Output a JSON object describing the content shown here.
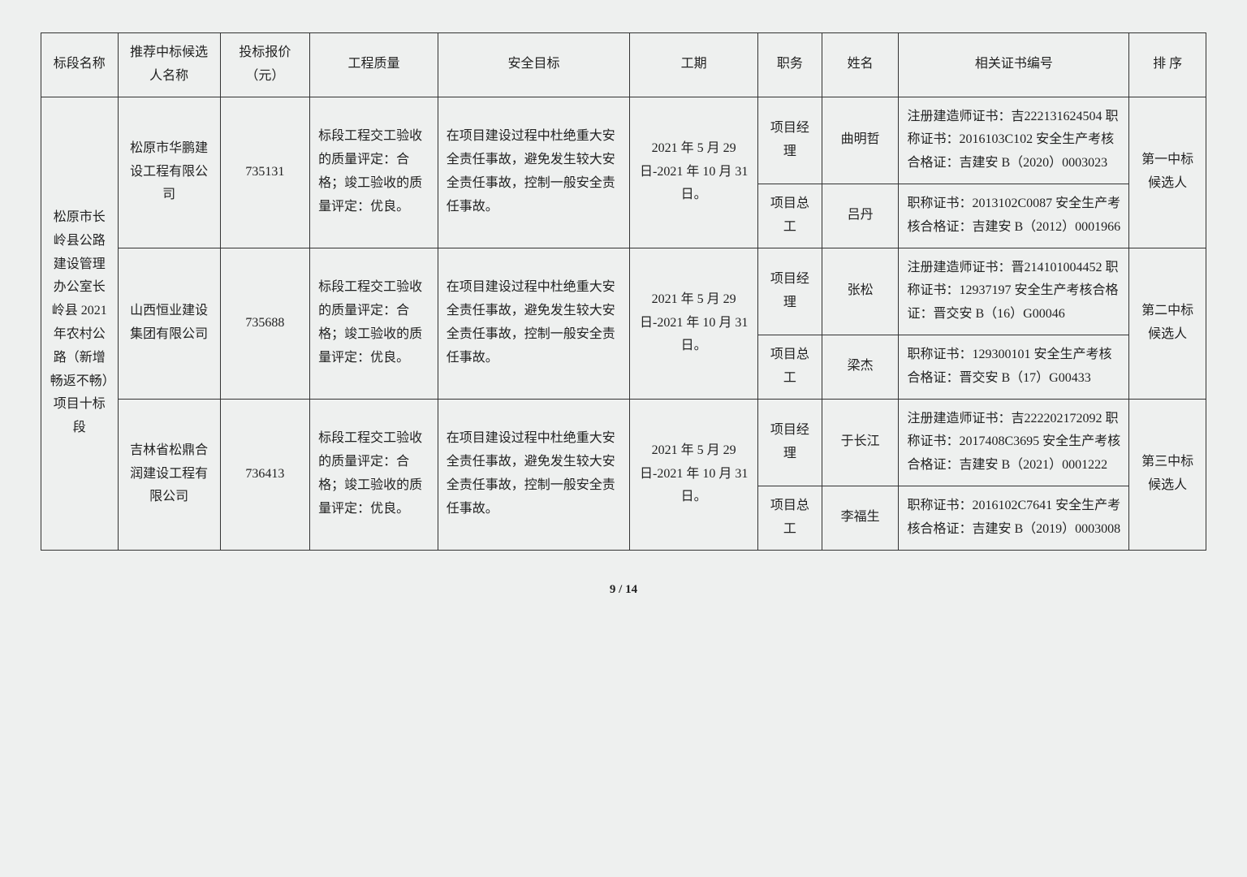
{
  "headers": [
    "标段名称",
    "推荐中标候选人名称",
    "投标报价（元）",
    "工程质量",
    "安全目标",
    "工期",
    "职务",
    "姓名",
    "相关证书编号",
    "排 序"
  ],
  "section": "松原市长岭县公路建设管理办公室长岭县 2021 年农村公路（新增畅返不畅）项目十标段",
  "quality": "标段工程交工验收的质量评定：合格；竣工验收的质量评定：优良。",
  "safety": "在项目建设过程中杜绝重大安全责任事故，避免发生较大安全责任事故，控制一般安全责任事故。",
  "schedule": "2021 年 5 月 29 日-2021 年 10 月 31 日。",
  "candidates": [
    {
      "company": "松原市华鹏建设工程有限公司",
      "price": "735131",
      "rank": "第一中标候选人",
      "staff": [
        {
          "role": "项目经理",
          "name": "曲明哲",
          "cert": "注册建造师证书：吉222131624504\n职称证书：2016103C102\n安全生产考核合格证：吉建安 B（2020）0003023"
        },
        {
          "role": "项目总工",
          "name": "吕丹",
          "cert": "职称证书：2013102C0087\n安全生产考核合格证：吉建安 B（2012）0001966"
        }
      ]
    },
    {
      "company": "山西恒业建设集团有限公司",
      "price": "735688",
      "rank": "第二中标候选人",
      "staff": [
        {
          "role": "项目经理",
          "name": "张松",
          "cert": "注册建造师证书：晋214101004452\n职称证书：12937197\n安全生产考核合格证：晋交安 B（16）G00046"
        },
        {
          "role": "项目总工",
          "name": "梁杰",
          "cert": "职称证书：129300101\n安全生产考核合格证：晋交安 B（17）G00433"
        }
      ]
    },
    {
      "company": "吉林省松鼎合润建设工程有限公司",
      "price": "736413",
      "rank": "第三中标候选人",
      "staff": [
        {
          "role": "项目经理",
          "name": "于长江",
          "cert": "注册建造师证书：吉222202172092\n职称证书：2017408C3695\n安全生产考核合格证：吉建安 B（2021）0001222"
        },
        {
          "role": "项目总工",
          "name": "李福生",
          "cert": "职称证书：2016102C7641\n安全生产考核合格证：吉建安 B（2019）0003008"
        }
      ]
    }
  ],
  "footer": "9 / 14"
}
